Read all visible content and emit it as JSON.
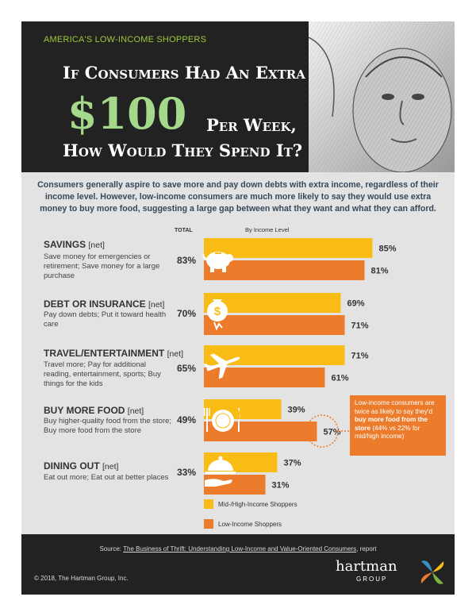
{
  "header": {
    "kicker": "AMERICA'S LOW-INCOME SHOPPERS",
    "title_line1": "If Consumers Had An Extra",
    "title_amount": "$100",
    "title_line2": "Per Week,",
    "title_line3": "How Would They Spend It?"
  },
  "intro": "Consumers generally aspire to save more and pay down debts with extra income, regardless of their income level. However, low-income consumers are much more likely to say they would use extra money to buy more food, suggesting a large gap between what they want and what they can afford.",
  "column_headers": {
    "total": "TOTAL",
    "by_income": "By Income Level"
  },
  "categories": [
    {
      "title": "SAVINGS",
      "net": "[net]",
      "desc": "Save money for emergencies or retirement; Save money for a large purchase",
      "total": "83%",
      "icon": "piggy-bank-icon"
    },
    {
      "title": "DEBT OR INSURANCE",
      "net": "[net]",
      "desc": "Pay down debts; Put it toward health care",
      "total": "70%",
      "icon": "money-bag-icon"
    },
    {
      "title": "TRAVEL/ENTERTAINMENT",
      "net": "[net]",
      "desc": "Travel more; Pay for additional reading, entertainment, sports; Buy things for the kids",
      "total": "65%",
      "icon": "airplane-icon"
    },
    {
      "title": "BUY MORE FOOD",
      "net": "[net]",
      "desc": "Buy higher-quality food from the store; Buy more food from the store",
      "total": "49%",
      "icon": "plate-cutlery-icon"
    },
    {
      "title": "DINING OUT",
      "net": "[net]",
      "desc": "Eat out more; Eat out at better places",
      "total": "33%",
      "icon": "cloche-icon"
    }
  ],
  "chart_data": {
    "type": "bar",
    "orientation": "horizontal",
    "categories": [
      "SAVINGS",
      "DEBT OR INSURANCE",
      "TRAVEL/ENTERTAINMENT",
      "BUY MORE FOOD",
      "DINING OUT"
    ],
    "series": [
      {
        "name": "Mid-/High-Income Shoppers",
        "values": [
          85,
          69,
          71,
          39,
          37
        ],
        "color": "#f9bc15"
      },
      {
        "name": "Low-Income Shoppers",
        "values": [
          81,
          71,
          61,
          57,
          31
        ],
        "color": "#ec7c2c"
      }
    ],
    "totals": [
      83,
      70,
      65,
      49,
      33
    ],
    "unit": "%",
    "xlim": [
      0,
      100
    ]
  },
  "callout": {
    "pre": "Low-income consumers are twice as likely to say they'd",
    "bold": "buy more food from the store",
    "post": "(44% vs 22% for mid/high income)"
  },
  "legend": {
    "mid_high": "Mid-/High-Income Shoppers",
    "low": "Low-Income Shoppers"
  },
  "footer": {
    "source_prefix": "Source:",
    "source_link": "The Business of Thrift: Understanding Low-Income and Value-Oriented Consumers",
    "source_suffix": ", report",
    "copyright": "© 2018, The Hartman Group, Inc.",
    "logo_text": "hartman",
    "logo_sub": "GROUP"
  },
  "colors": {
    "mid_high": "#f9bc15",
    "low": "#ec7c2c",
    "accent_green": "#a4d88a",
    "background_dark": "#222222",
    "panel_gray": "#e3e3e3"
  }
}
